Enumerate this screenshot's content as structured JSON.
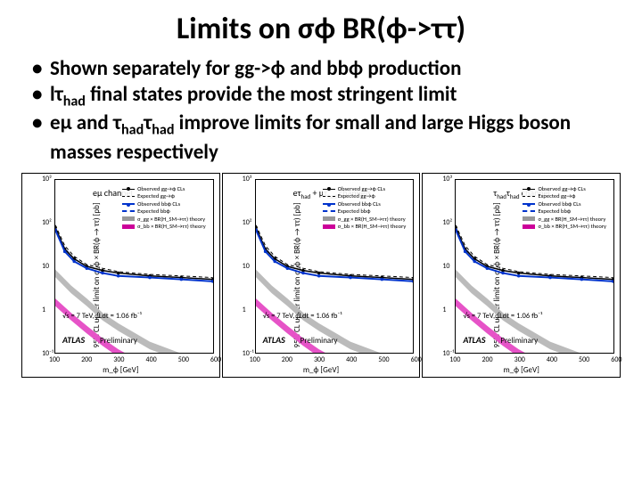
{
  "title": "Limits on σϕ BR(ϕ->ττ)",
  "bullets": [
    "Shown separately for gg->ϕ and bbϕ production",
    "lτ_had final states provide the most stringent limit",
    "eμ and τ_hadτ_had improve limits for small and large Higgs boson masses respectively"
  ],
  "charts": [
    {
      "title": "eμ channel"
    },
    {
      "title": "eτ_had + μτ_had channels"
    },
    {
      "title": "τ_hadτ_had channel"
    }
  ],
  "common": {
    "xlabel": "m_ϕ [GeV]",
    "ylabel": "95% CL upper limit on σ_ϕ × BR(ϕ → ττ) [pb]",
    "xlim": [
      100,
      600
    ],
    "ylim_log": [
      -1,
      3
    ],
    "xticks": [
      100,
      200,
      300,
      400,
      500,
      600
    ],
    "yticks_exp": [
      -1,
      0,
      1,
      2,
      3
    ],
    "ytick_labels": [
      "10⁻¹",
      "1",
      "10",
      "10²",
      "10³"
    ],
    "legend": [
      {
        "style": "dot",
        "label": "Observed gg→ϕ CLs"
      },
      {
        "style": "dashed",
        "label": "Expected gg→ϕ"
      },
      {
        "style": "blue dot",
        "label": "Observed bbϕ CLs"
      },
      {
        "style": "blue dashed",
        "label": "Expected bbϕ"
      },
      {
        "style": "graybox",
        "label": "σ_gg × BR(H_SM→ττ) theory"
      },
      {
        "style": "magentabox",
        "label": "σ_bb × BR(H_SM→ττ) theory"
      }
    ],
    "lumi_text": "√s = 7 TeV,  ∫Ldt = 1.06 fb⁻¹",
    "atlas": "ATLAS",
    "prelim": "Preliminary",
    "curves": {
      "obs_gg": {
        "color": "#000000",
        "width": 1.5,
        "dash": "",
        "markers": true,
        "pts": [
          [
            100,
            80
          ],
          [
            130,
            25
          ],
          [
            160,
            15
          ],
          [
            200,
            10
          ],
          [
            250,
            8
          ],
          [
            300,
            7
          ],
          [
            400,
            6
          ],
          [
            500,
            5.5
          ],
          [
            600,
            5
          ]
        ]
      },
      "exp_gg": {
        "color": "#000000",
        "width": 1,
        "dash": "4,3",
        "markers": false,
        "pts": [
          [
            100,
            90
          ],
          [
            130,
            30
          ],
          [
            160,
            17
          ],
          [
            200,
            11
          ],
          [
            250,
            9
          ],
          [
            300,
            7.5
          ],
          [
            400,
            6.5
          ],
          [
            500,
            6
          ],
          [
            600,
            5.5
          ]
        ]
      },
      "obs_bb": {
        "color": "#0033cc",
        "width": 2,
        "dash": "",
        "markers": true,
        "pts": [
          [
            100,
            70
          ],
          [
            130,
            22
          ],
          [
            160,
            13
          ],
          [
            200,
            9
          ],
          [
            250,
            7
          ],
          [
            300,
            6
          ],
          [
            400,
            5.5
          ],
          [
            500,
            5
          ],
          [
            600,
            4.5
          ]
        ]
      },
      "exp_bb": {
        "color": "#0033cc",
        "width": 1.2,
        "dash": "4,3",
        "markers": false,
        "pts": [
          [
            100,
            75
          ],
          [
            130,
            26
          ],
          [
            160,
            15
          ],
          [
            200,
            10
          ],
          [
            250,
            8
          ],
          [
            300,
            7
          ],
          [
            400,
            6
          ],
          [
            500,
            5.5
          ],
          [
            600,
            5
          ]
        ]
      },
      "gray": {
        "color": "#999999",
        "fill": "#bbbbbb",
        "width": 0,
        "pts": [
          [
            100,
            7
          ],
          [
            150,
            3
          ],
          [
            200,
            1.5
          ],
          [
            250,
            0.7
          ],
          [
            300,
            0.4
          ],
          [
            400,
            0.15
          ],
          [
            500,
            0.08
          ],
          [
            600,
            0.04
          ]
        ]
      },
      "magenta": {
        "color": "#cc0099",
        "fill": "#e653c7",
        "width": 0,
        "pts": [
          [
            100,
            1.5
          ],
          [
            150,
            0.7
          ],
          [
            200,
            0.35
          ],
          [
            250,
            0.18
          ],
          [
            300,
            0.1
          ],
          [
            400,
            0.04
          ],
          [
            500,
            0.018
          ],
          [
            600,
            0.01
          ]
        ]
      }
    }
  }
}
